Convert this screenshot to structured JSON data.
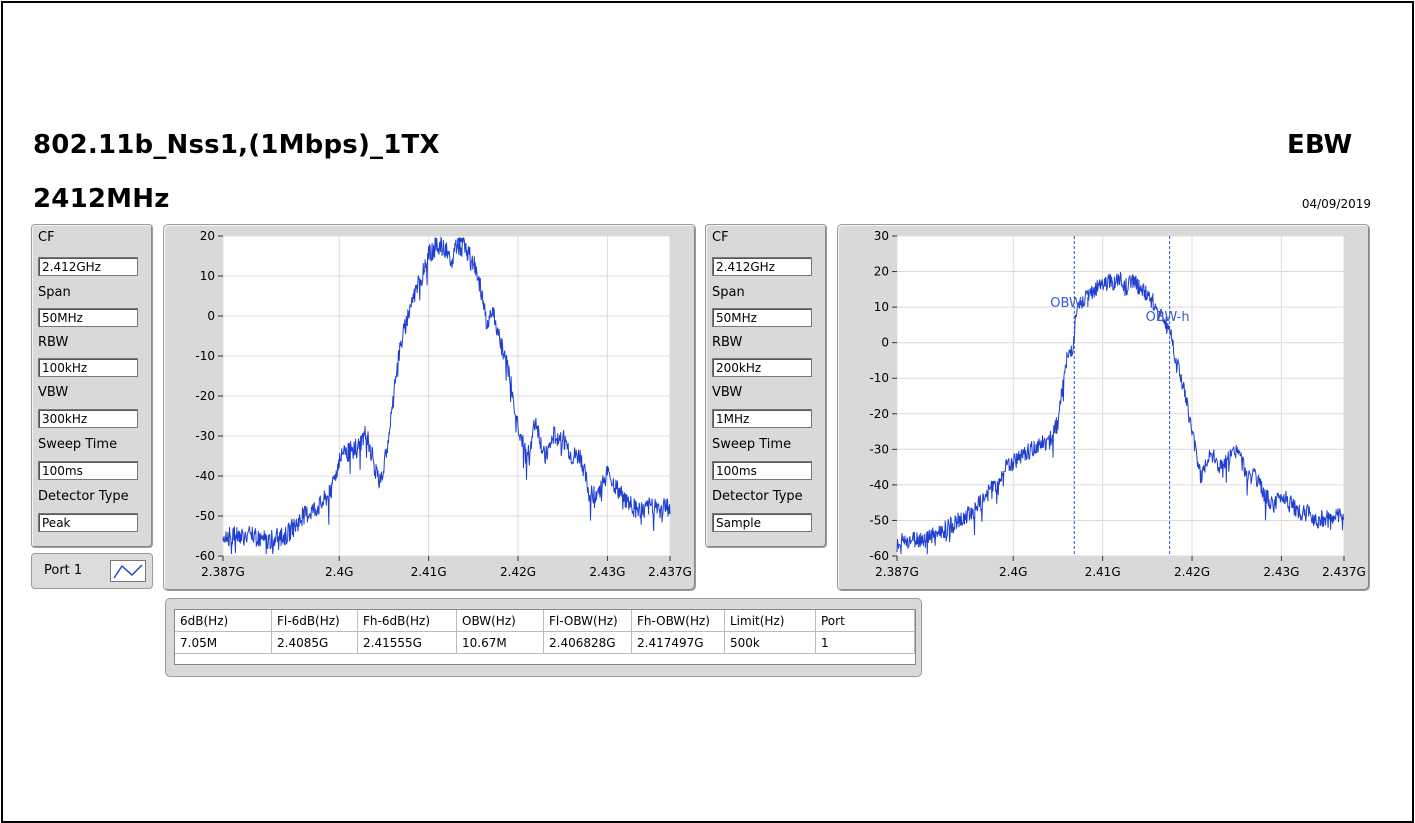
{
  "header": {
    "title": "802.11b_Nss1,(1Mbps)_1TX",
    "frequency": "2412MHz",
    "test_name": "EBW",
    "date": "04/09/2019"
  },
  "left_settings": [
    {
      "label": "CF",
      "value": "2.412GHz"
    },
    {
      "label": "Span",
      "value": "50MHz"
    },
    {
      "label": "RBW",
      "value": "100kHz"
    },
    {
      "label": "VBW",
      "value": "300kHz"
    },
    {
      "label": "Sweep Time",
      "value": "100ms"
    },
    {
      "label": "Detector Type",
      "value": "Peak"
    }
  ],
  "right_settings": [
    {
      "label": "CF",
      "value": "2.412GHz"
    },
    {
      "label": "Span",
      "value": "50MHz"
    },
    {
      "label": "RBW",
      "value": "200kHz"
    },
    {
      "label": "VBW",
      "value": "1MHz"
    },
    {
      "label": "Sweep Time",
      "value": "100ms"
    },
    {
      "label": "Detector Type",
      "value": "Sample"
    }
  ],
  "port_legend": {
    "label": "Port 1"
  },
  "colors": {
    "trace": "#1f3fd0",
    "marker_line": "#2a4bd4",
    "panel": "#d9d9d9"
  },
  "chart_data": [
    {
      "type": "line",
      "x_range": [
        2387000000.0,
        2437000000.0
      ],
      "ylim": [
        -60,
        20
      ],
      "x_ticks": [
        2387000000.0,
        2400000000.0,
        2410000000.0,
        2420000000.0,
        2430000000.0,
        2437000000.0
      ],
      "x_tick_labels": [
        "2.387G",
        "2.4G",
        "2.41G",
        "2.42G",
        "2.43G",
        "2.437G"
      ],
      "y_ticks": [
        20,
        10,
        0,
        -10,
        -20,
        -30,
        -40,
        -50,
        -60
      ],
      "y_tick_labels": [
        "20",
        "10",
        "0",
        "-10",
        "-20",
        "-30",
        "-40",
        "-50",
        "-60"
      ],
      "grid": true,
      "series": [
        {
          "x": [
            2387000000.0,
            2390000000.0,
            2392000000.0,
            2394000000.0,
            2396000000.0,
            2398000000.0,
            2399000000.0,
            2400000000.0,
            2401000000.0,
            2402000000.0,
            2403000000.0,
            2404000000.0,
            2404500000.0,
            2405000000.0,
            2406000000.0,
            2406500000.0,
            2407000000.0,
            2408000000.0,
            2409000000.0,
            2410000000.0,
            2411000000.0,
            2412000000.0,
            2412500000.0,
            2413000000.0,
            2414000000.0,
            2415000000.0,
            2416000000.0,
            2416500000.0,
            2417000000.0,
            2418000000.0,
            2419000000.0,
            2420000000.0,
            2421000000.0,
            2422000000.0,
            2423000000.0,
            2424000000.0,
            2425000000.0,
            2426000000.0,
            2427000000.0,
            2428000000.0,
            2429000000.0,
            2430000000.0,
            2431000000.0,
            2432000000.0,
            2433000000.0,
            2434000000.0,
            2435000000.0,
            2437000000.0
          ],
          "values": [
            -55,
            -55,
            -56,
            -55,
            -50,
            -47,
            -44,
            -36,
            -34,
            -33,
            -29,
            -38,
            -42,
            -38,
            -22,
            -12,
            -6,
            3,
            9,
            15,
            18,
            16,
            12,
            18,
            17,
            14,
            5,
            -2,
            2,
            -6,
            -14,
            -27,
            -36,
            -26,
            -36,
            -30,
            -30,
            -35,
            -35,
            -45,
            -44,
            -39,
            -43,
            -46,
            -48,
            -49,
            -47,
            -48
          ]
        }
      ],
      "markers": [
        {
          "x": 2413500000.0,
          "y": 19
        }
      ]
    },
    {
      "type": "line",
      "x_range": [
        2387000000.0,
        2437000000.0
      ],
      "ylim": [
        -60,
        30
      ],
      "x_ticks": [
        2387000000.0,
        2400000000.0,
        2410000000.0,
        2420000000.0,
        2430000000.0,
        2437000000.0
      ],
      "x_tick_labels": [
        "2.387G",
        "2.4G",
        "2.41G",
        "2.42G",
        "2.43G",
        "2.437G"
      ],
      "y_ticks": [
        30,
        20,
        10,
        0,
        -10,
        -20,
        -30,
        -40,
        -50,
        -60
      ],
      "y_tick_labels": [
        "30",
        "20",
        "10",
        "0",
        "-10",
        "-20",
        "-30",
        "-40",
        "-50",
        "-60"
      ],
      "grid": true,
      "series": [
        {
          "x": [
            2387000000.0,
            2390000000.0,
            2392000000.0,
            2394000000.0,
            2396000000.0,
            2398000000.0,
            2399000000.0,
            2400000000.0,
            2401000000.0,
            2402000000.0,
            2403000000.0,
            2404000000.0,
            2405000000.0,
            2406000000.0,
            2406800000.0,
            2407000000.0,
            2408000000.0,
            2409000000.0,
            2410000000.0,
            2411000000.0,
            2412000000.0,
            2412500000.0,
            2413000000.0,
            2414000000.0,
            2415000000.0,
            2416000000.0,
            2417500000.0,
            2418000000.0,
            2419000000.0,
            2420000000.0,
            2421000000.0,
            2422000000.0,
            2423000000.0,
            2424000000.0,
            2425000000.0,
            2426000000.0,
            2427000000.0,
            2428000000.0,
            2429000000.0,
            2430000000.0,
            2431000000.0,
            2432000000.0,
            2433000000.0,
            2434000000.0,
            2435000000.0,
            2437000000.0
          ],
          "values": [
            -56,
            -55,
            -53,
            -50,
            -46,
            -40,
            -35,
            -34,
            -32,
            -30,
            -28,
            -28,
            -22,
            -5,
            0,
            8,
            12,
            14,
            17,
            17,
            18,
            15,
            18,
            16,
            14,
            10,
            4,
            -2,
            -12,
            -25,
            -38,
            -30,
            -35,
            -33,
            -30,
            -36,
            -38,
            -42,
            -46,
            -43,
            -45,
            -48,
            -48,
            -50,
            -49,
            -49
          ]
        }
      ],
      "markers": [
        {
          "label": "OBW-l",
          "x": 2406828000.0
        },
        {
          "label": "OBW-h",
          "x": 2417497000.0
        }
      ]
    }
  ],
  "results_table": {
    "headers": [
      "6dB(Hz)",
      "Fl-6dB(Hz)",
      "Fh-6dB(Hz)",
      "OBW(Hz)",
      "Fl-OBW(Hz)",
      "Fh-OBW(Hz)",
      "Limit(Hz)",
      "Port"
    ],
    "row": [
      "7.05M",
      "2.4085G",
      "2.41555G",
      "10.67M",
      "2.406828G",
      "2.417497G",
      "500k",
      "1"
    ]
  }
}
